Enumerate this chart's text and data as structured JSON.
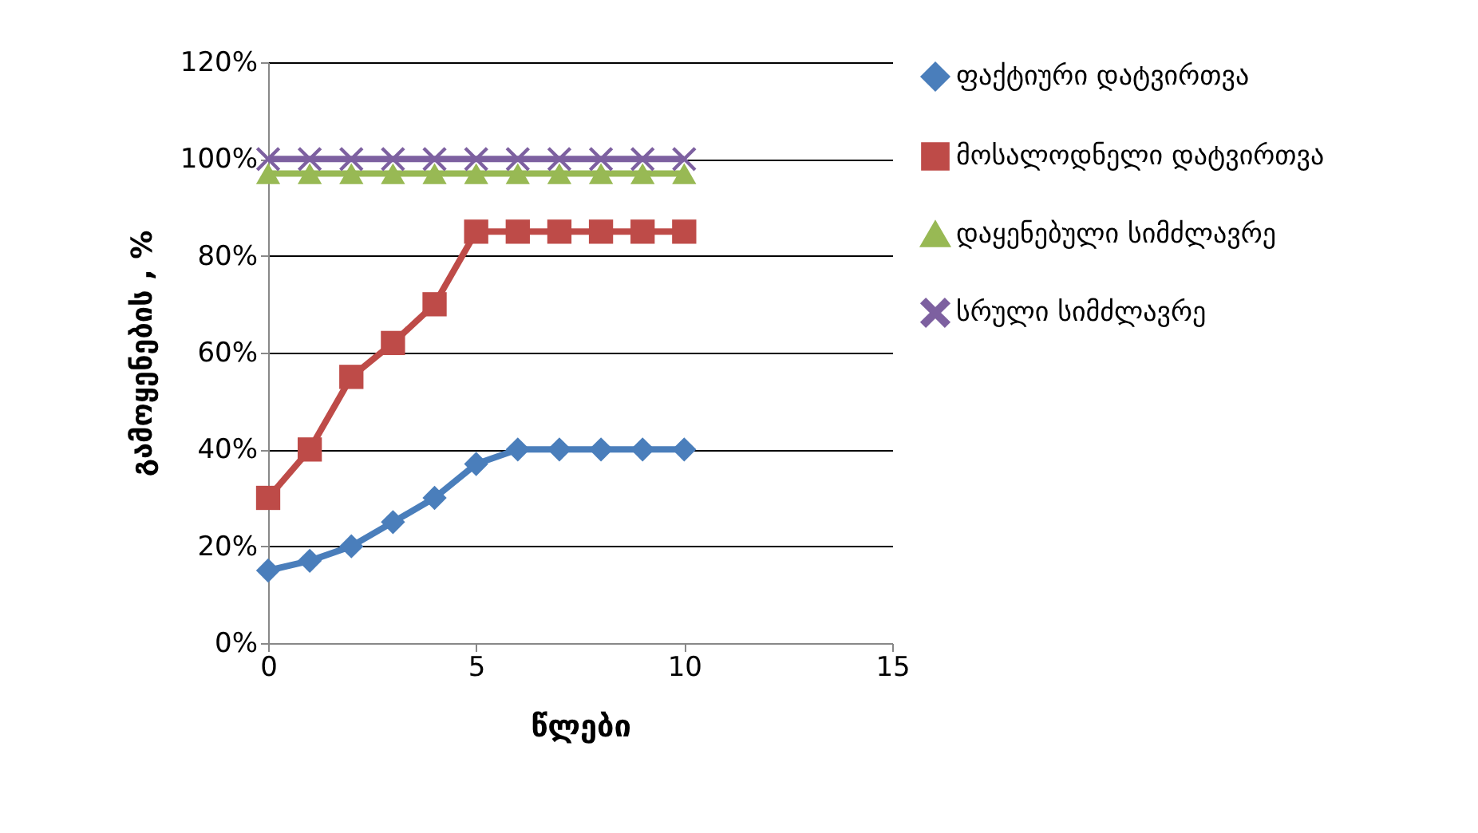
{
  "chart_data": {
    "type": "line",
    "xlabel": "წლები",
    "ylabel": "გამოყენების , %",
    "x": [
      0,
      1,
      2,
      3,
      4,
      5,
      6,
      7,
      8,
      9,
      10
    ],
    "series": [
      {
        "name": "ფაქტიური დატვირთვა",
        "color": "#4a7ebb",
        "marker": "diamond",
        "values": [
          15,
          17,
          20,
          25,
          30,
          37,
          40,
          40,
          40,
          40,
          40
        ]
      },
      {
        "name": "მოსალოდნელი დატვირთვა",
        "color": "#be4b48",
        "marker": "square",
        "values": [
          30,
          40,
          55,
          62,
          70,
          85,
          85,
          85,
          85,
          85,
          85
        ]
      },
      {
        "name": "დაყენებული სიმძლავრე",
        "color": "#98b954",
        "marker": "triangle",
        "values": [
          97,
          97,
          97,
          97,
          97,
          97,
          97,
          97,
          97,
          97,
          97
        ]
      },
      {
        "name": "სრული სიმძლავრე",
        "color": "#7d60a0",
        "marker": "cross",
        "values": [
          100,
          100,
          100,
          100,
          100,
          100,
          100,
          100,
          100,
          100,
          100
        ]
      }
    ],
    "xlim": [
      0,
      15
    ],
    "xticks": [
      0,
      5,
      10,
      15
    ],
    "ylim": [
      0,
      120
    ],
    "yticks": [
      {
        "value": 0,
        "label": "0%"
      },
      {
        "value": 20,
        "label": "20%"
      },
      {
        "value": 40,
        "label": "40%"
      },
      {
        "value": 60,
        "label": "60%"
      },
      {
        "value": 80,
        "label": "80%"
      },
      {
        "value": 100,
        "label": "100%"
      },
      {
        "value": 120,
        "label": "120%"
      }
    ],
    "grid": "y",
    "legend": "right",
    "line_style": "solid"
  }
}
